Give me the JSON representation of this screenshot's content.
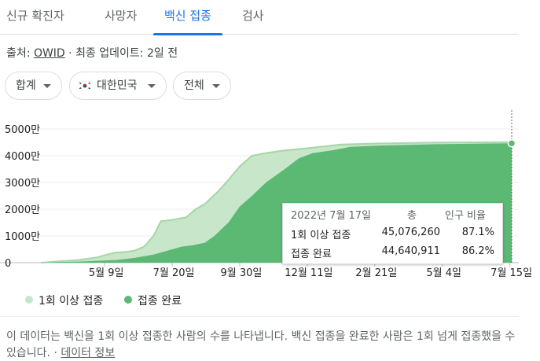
{
  "tabs": [
    {
      "label": "신규 확진자"
    },
    {
      "label": "사망자"
    },
    {
      "label": "백신 접종"
    },
    {
      "label": "검사"
    }
  ],
  "active_tab": "백신 접종",
  "source": {
    "prefix": "출처:",
    "link": "OWID",
    "update": "· 최종 업데이트: 2일 전"
  },
  "filters": {
    "dose": "합계",
    "country": "대한민국",
    "range": "전체"
  },
  "tooltip": {
    "date": "2022년 7월 17일",
    "col_total": "총",
    "col_pct": "인구 비율",
    "rows": [
      {
        "label": "1회 이상 접종",
        "total": "45,076,260",
        "pct": "87.1%"
      },
      {
        "label": "접종 완료",
        "total": "44,640,911",
        "pct": "86.2%"
      }
    ]
  },
  "legend": {
    "at_least_one": "1회 이상 접종",
    "fully": "접종 완료"
  },
  "note": {
    "text": "이 데이터는 백신을 1회 이상 접종한 사람의 수를 나타냅니다. 백신 접종을 완료한 사람은 1회 넘게 접종했을 수 있습니다.",
    "link": "데이터 정보"
  },
  "colors": {
    "at_least_one": "#c8e6c9",
    "at_least_one_line": "#a5d6a7",
    "fully": "#5bb974",
    "accent": "#1a73e8"
  },
  "chart_data": {
    "type": "area",
    "y_ticks": [
      "0",
      "1000만",
      "2000만",
      "3000만",
      "4000만",
      "5000만"
    ],
    "y_tick_values": [
      0,
      10000000,
      20000000,
      30000000,
      40000000,
      50000000
    ],
    "ylim": [
      0,
      50000000
    ],
    "x_ticks": [
      "5월 9일",
      "7월 20일",
      "9월 30일",
      "12월 11일",
      "2월 21일",
      "5월 4일",
      "7월 15일"
    ],
    "x_tick_days": [
      68,
      140,
      212,
      284,
      356,
      428,
      500
    ],
    "x_days_range": [
      0,
      502
    ],
    "series": [
      {
        "name": "1회 이상 접종",
        "points": [
          [
            0,
            0
          ],
          [
            20,
            500000
          ],
          [
            40,
            1000000
          ],
          [
            60,
            2000000
          ],
          [
            70,
            3000000
          ],
          [
            80,
            3800000
          ],
          [
            90,
            4000000
          ],
          [
            100,
            4500000
          ],
          [
            110,
            6000000
          ],
          [
            120,
            10000000
          ],
          [
            128,
            15500000
          ],
          [
            140,
            16000000
          ],
          [
            155,
            17000000
          ],
          [
            165,
            20000000
          ],
          [
            175,
            22000000
          ],
          [
            190,
            27000000
          ],
          [
            200,
            31000000
          ],
          [
            212,
            36000000
          ],
          [
            225,
            40000000
          ],
          [
            240,
            41000000
          ],
          [
            260,
            42000000
          ],
          [
            290,
            43000000
          ],
          [
            320,
            44200000
          ],
          [
            360,
            44600000
          ],
          [
            420,
            44900000
          ],
          [
            502,
            45076260
          ]
        ]
      },
      {
        "name": "접종 완료",
        "points": [
          [
            0,
            0
          ],
          [
            20,
            200000
          ],
          [
            40,
            400000
          ],
          [
            60,
            700000
          ],
          [
            80,
            1000000
          ],
          [
            100,
            1800000
          ],
          [
            120,
            3000000
          ],
          [
            140,
            5000000
          ],
          [
            150,
            6000000
          ],
          [
            162,
            6500000
          ],
          [
            175,
            7500000
          ],
          [
            185,
            10000000
          ],
          [
            200,
            15000000
          ],
          [
            212,
            21000000
          ],
          [
            225,
            25000000
          ],
          [
            240,
            30000000
          ],
          [
            260,
            35000000
          ],
          [
            275,
            39000000
          ],
          [
            290,
            41000000
          ],
          [
            310,
            42000000
          ],
          [
            330,
            43300000
          ],
          [
            360,
            43800000
          ],
          [
            420,
            44300000
          ],
          [
            502,
            44640911
          ]
        ]
      }
    ]
  }
}
